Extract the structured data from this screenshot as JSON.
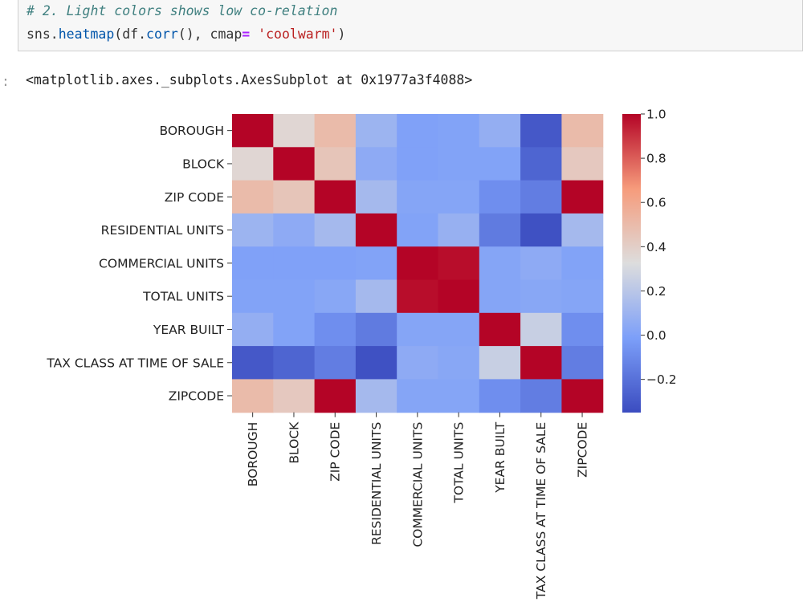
{
  "code_cell": {
    "comment": "# 2. Light colors shows low co-relation",
    "code_prefix": "sns.",
    "code_func": "heatmap",
    "code_mid": "(df.",
    "code_func2": "corr",
    "code_mid2": "(), cmap",
    "code_op": "=",
    "code_space": " ",
    "code_str": "'coolwarm'",
    "code_end": ")"
  },
  "output": {
    "prompt": ":",
    "text": "<matplotlib.axes._subplots.AxesSubplot at 0x1977a3f4088>"
  },
  "chart_data": {
    "type": "heatmap",
    "colormap": "coolwarm",
    "labels": [
      "BOROUGH",
      "BLOCK",
      "ZIP CODE",
      "RESIDENTIAL UNITS",
      "COMMERCIAL UNITS",
      "TOTAL UNITS",
      "YEAR BUILT",
      "TAX CLASS AT TIME OF SALE",
      "ZIPCODE"
    ],
    "matrix": [
      [
        1.0,
        0.36,
        0.5,
        0.1,
        0.0,
        0.01,
        0.07,
        -0.3,
        0.5
      ],
      [
        0.36,
        1.0,
        0.45,
        0.05,
        0.0,
        0.01,
        0.01,
        -0.25,
        0.43
      ],
      [
        0.5,
        0.45,
        1.0,
        0.13,
        0.02,
        0.02,
        -0.08,
        -0.15,
        1.0
      ],
      [
        0.1,
        0.05,
        0.13,
        1.0,
        0.01,
        0.08,
        -0.16,
        -0.33,
        0.13
      ],
      [
        0.0,
        0.0,
        0.0,
        0.01,
        1.0,
        0.98,
        0.02,
        0.05,
        0.01
      ],
      [
        0.01,
        0.01,
        0.03,
        0.13,
        0.98,
        1.0,
        0.02,
        0.03,
        0.02
      ],
      [
        0.07,
        0.01,
        -0.08,
        -0.16,
        0.02,
        0.02,
        1.0,
        0.25,
        -0.08
      ],
      [
        -0.3,
        -0.25,
        -0.15,
        -0.33,
        0.05,
        0.03,
        0.25,
        1.0,
        -0.15
      ],
      [
        0.5,
        0.43,
        1.0,
        0.13,
        0.02,
        0.02,
        -0.08,
        -0.15,
        1.0
      ]
    ],
    "colorbar": {
      "vmin": -0.35,
      "vmax": 1.0,
      "ticks": [
        1.0,
        0.8,
        0.6,
        0.4,
        0.2,
        0.0,
        -0.2
      ],
      "tick_labels": [
        "1.0",
        "0.8",
        "0.6",
        "0.4",
        "0.2",
        "0.0",
        "−0.2"
      ]
    }
  }
}
